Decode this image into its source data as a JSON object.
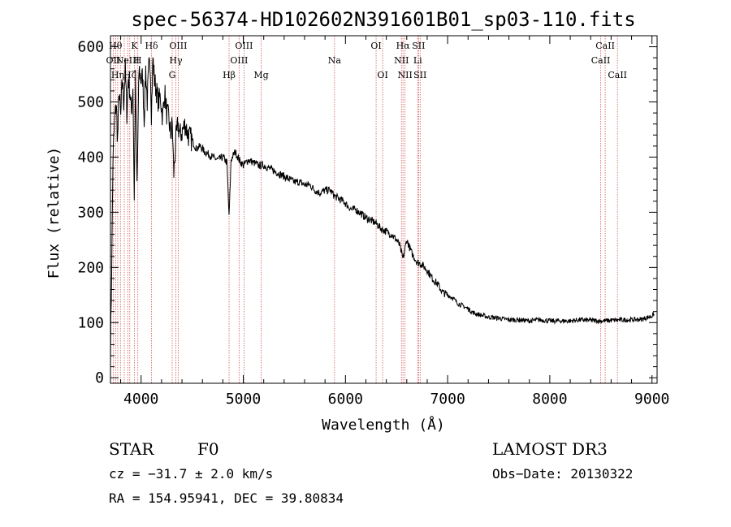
{
  "chart_data": {
    "type": "line",
    "title": "spec-56374-HD102602N391601B01_sp03-110.fits",
    "xlabel": "Wavelength (Å)",
    "ylabel": "Flux (relative)",
    "xlim": [
      3700,
      9050
    ],
    "ylim": [
      -10,
      620
    ],
    "xticks": [
      4000,
      5000,
      6000,
      7000,
      8000,
      9000
    ],
    "yticks": [
      0,
      100,
      200,
      300,
      400,
      500,
      600
    ],
    "series": [
      {
        "name": "flux",
        "x": [
          3700,
          3712,
          3725,
          3740,
          3755,
          3770,
          3785,
          3800,
          3815,
          3830,
          3845,
          3860,
          3875,
          3890,
          3905,
          3920,
          3933,
          3945,
          3960,
          3968,
          3980,
          4000,
          4015,
          4030,
          4045,
          4060,
          4075,
          4090,
          4101,
          4115,
          4130,
          4150,
          4170,
          4190,
          4210,
          4230,
          4250,
          4270,
          4290,
          4305,
          4320,
          4340,
          4360,
          4380,
          4400,
          4430,
          4460,
          4500,
          4540,
          4580,
          4620,
          4660,
          4700,
          4750,
          4800,
          4840,
          4861,
          4880,
          4920,
          4960,
          5000,
          5050,
          5100,
          5150,
          5200,
          5250,
          5300,
          5350,
          5400,
          5450,
          5500,
          5550,
          5600,
          5650,
          5700,
          5750,
          5800,
          5850,
          5890,
          5930,
          5980,
          6020,
          6060,
          6100,
          6150,
          6200,
          6250,
          6300,
          6350,
          6400,
          6450,
          6500,
          6530,
          6563,
          6600,
          6650,
          6700,
          6750,
          6800,
          6850,
          6900,
          6950,
          7000,
          7050,
          7100,
          7150,
          7200,
          7250,
          7300,
          7400,
          7500,
          7600,
          7700,
          7800,
          7900,
          8000,
          8100,
          8200,
          8300,
          8400,
          8500,
          8600,
          8700,
          8800,
          8900,
          9000,
          9020
        ],
        "y": [
          40,
          200,
          400,
          460,
          500,
          430,
          520,
          470,
          540,
          500,
          560,
          480,
          545,
          520,
          480,
          530,
          320,
          540,
          350,
          430,
          560,
          540,
          545,
          470,
          560,
          500,
          560,
          570,
          480,
          580,
          540,
          520,
          500,
          510,
          470,
          520,
          480,
          470,
          440,
          460,
          370,
          430,
          460,
          440,
          445,
          460,
          440,
          430,
          415,
          420,
          410,
          405,
          400,
          395,
          400,
          390,
          290,
          395,
          410,
          395,
          385,
          395,
          390,
          385,
          385,
          380,
          375,
          370,
          365,
          360,
          355,
          355,
          350,
          350,
          340,
          335,
          340,
          340,
          330,
          325,
          320,
          312,
          305,
          305,
          298,
          290,
          285,
          280,
          270,
          265,
          260,
          250,
          240,
          215,
          250,
          225,
          210,
          205,
          195,
          180,
          170,
          155,
          150,
          145,
          135,
          130,
          125,
          118,
          115,
          110,
          108,
          105,
          105,
          103,
          105,
          103,
          103,
          103,
          105,
          104,
          103,
          104,
          105,
          105,
          106,
          112,
          116
        ]
      }
    ],
    "lines": [
      {
        "x": 3727,
        "label": "OII",
        "row": 2
      },
      {
        "x": 3750,
        "label": "Hθ",
        "row": 1
      },
      {
        "x": 3771,
        "label": "Hη",
        "row": 3
      },
      {
        "x": 3798,
        "label": "",
        "row": 0
      },
      {
        "x": 3835,
        "label": "",
        "row": 0
      },
      {
        "x": 3869,
        "label": "NeIII",
        "row": 2
      },
      {
        "x": 3889,
        "label": "Hζ",
        "row": 3
      },
      {
        "x": 3934,
        "label": "K",
        "row": 1
      },
      {
        "x": 3968,
        "label": "H",
        "row": 2
      },
      {
        "x": 4102,
        "label": "Hδ",
        "row": 1
      },
      {
        "x": 4304,
        "label": "G",
        "row": 3
      },
      {
        "x": 4340,
        "label": "Hγ",
        "row": 2
      },
      {
        "x": 4363,
        "label": "OIII",
        "row": 1
      },
      {
        "x": 4861,
        "label": "Hβ",
        "row": 3
      },
      {
        "x": 4959,
        "label": "OIII",
        "row": 2
      },
      {
        "x": 5007,
        "label": "OIII",
        "row": 1
      },
      {
        "x": 5175,
        "label": "Mg",
        "row": 3
      },
      {
        "x": 5893,
        "label": "Na",
        "row": 2
      },
      {
        "x": 6300,
        "label": "OI",
        "row": 1
      },
      {
        "x": 6364,
        "label": "OI",
        "row": 3
      },
      {
        "x": 6548,
        "label": "NII",
        "row": 2
      },
      {
        "x": 6563,
        "label": "Hα",
        "row": 1
      },
      {
        "x": 6583,
        "label": "NII",
        "row": 3
      },
      {
        "x": 6707,
        "label": "Li",
        "row": 2
      },
      {
        "x": 6716,
        "label": "SII",
        "row": 1
      },
      {
        "x": 6731,
        "label": "SII",
        "row": 3
      },
      {
        "x": 8498,
        "label": "CaII",
        "row": 2
      },
      {
        "x": 8542,
        "label": "CaII",
        "row": 1
      },
      {
        "x": 8662,
        "label": "CaII",
        "row": 3
      }
    ]
  },
  "info": {
    "class_label": "STAR",
    "subclass": "F0",
    "survey": "LAMOST DR3",
    "velocity": "cz = −31.7 ± 2.0 km/s",
    "obs_date": "Obs−Date: 20130322",
    "coords": "RA = 154.95941, DEC =  39.80834"
  }
}
